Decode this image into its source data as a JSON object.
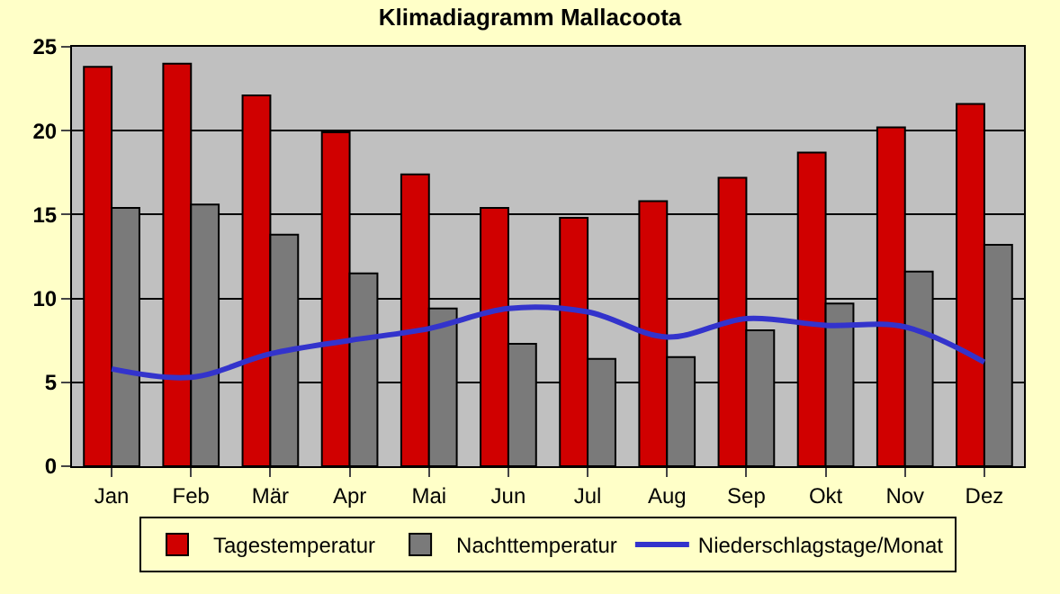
{
  "chart_data": {
    "type": "bar",
    "title": "Klimadiagramm Mallacoota",
    "categories": [
      "Jan",
      "Feb",
      "Mär",
      "Apr",
      "Mai",
      "Jun",
      "Jul",
      "Aug",
      "Sep",
      "Okt",
      "Nov",
      "Dez"
    ],
    "series": [
      {
        "name": "Tagestemperatur",
        "color": "#d00000",
        "values": [
          23.8,
          24.0,
          22.1,
          19.9,
          17.4,
          15.4,
          14.8,
          15.8,
          17.2,
          18.7,
          20.2,
          21.6
        ]
      },
      {
        "name": "Nachttemperatur",
        "color": "#7a7a7a",
        "values": [
          15.4,
          15.6,
          13.8,
          11.5,
          9.4,
          7.3,
          6.4,
          6.5,
          8.1,
          9.7,
          11.6,
          13.2
        ]
      },
      {
        "name": "Niederschlagstage/Monat",
        "type": "line",
        "color": "#3333cc",
        "values": [
          5.8,
          5.3,
          6.7,
          7.5,
          8.2,
          9.4,
          9.2,
          7.7,
          8.8,
          8.4,
          8.3,
          6.2
        ]
      }
    ],
    "ylim": [
      0,
      25
    ],
    "yticks": [
      0,
      5,
      10,
      15,
      20,
      25
    ],
    "grid": "y",
    "legend": "bottom"
  }
}
